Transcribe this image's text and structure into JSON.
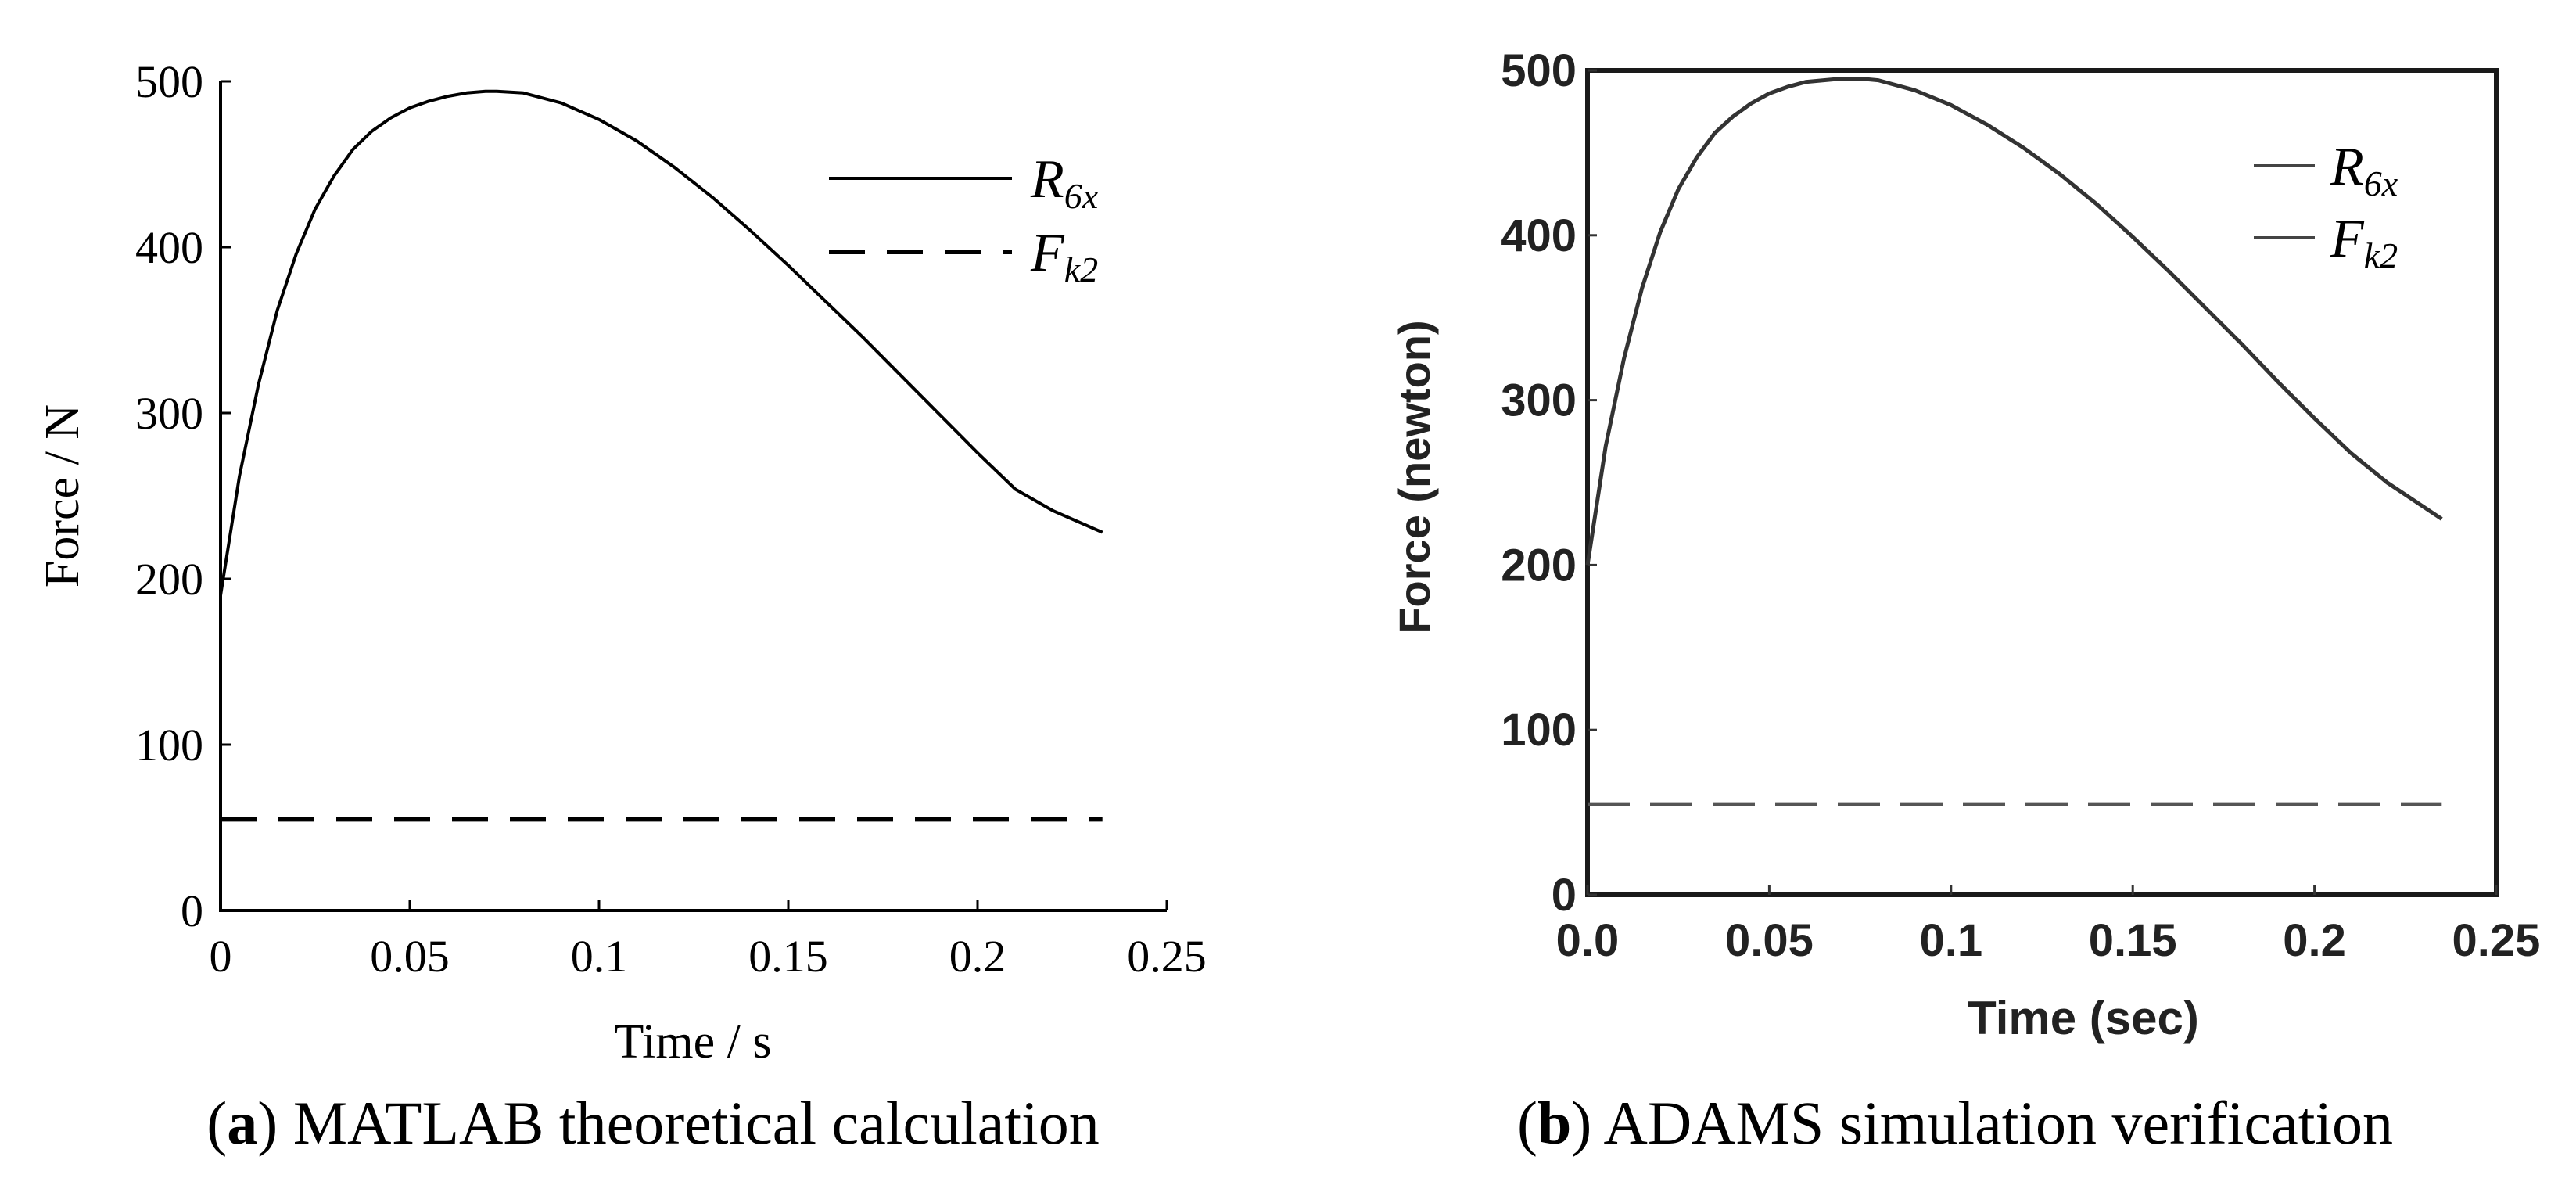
{
  "figure": {
    "caption_a": {
      "label": "a",
      "text": ") MATLAB theoretical calculation"
    },
    "caption_b": {
      "label": "b",
      "text": ") ADAMS simulation verification"
    },
    "paren_open": "("
  },
  "chart_data": [
    {
      "id": "a",
      "type": "line",
      "title": "",
      "xlabel": "Time / s",
      "ylabel": "Force / N",
      "xlim": [
        0,
        0.25
      ],
      "ylim": [
        0,
        500
      ],
      "xticks": [
        "0",
        "0.05",
        "0.1",
        "0.15",
        "0.2",
        "0.25"
      ],
      "yticks": [
        "0",
        "100",
        "200",
        "300",
        "400",
        "500"
      ],
      "grid": false,
      "legend": "top-right",
      "series": [
        {
          "name": "R6x",
          "label_main": "R",
          "label_sub": "6x",
          "style": "solid",
          "x": [
            0,
            0.005,
            0.01,
            0.015,
            0.02,
            0.025,
            0.03,
            0.035,
            0.04,
            0.045,
            0.05,
            0.055,
            0.06,
            0.065,
            0.07,
            0.073,
            0.08,
            0.09,
            0.1,
            0.11,
            0.12,
            0.13,
            0.14,
            0.15,
            0.16,
            0.17,
            0.18,
            0.19,
            0.2,
            0.21,
            0.22,
            0.233
          ],
          "y": [
            190,
            262,
            317,
            362,
            396,
            423,
            443,
            459,
            470,
            478,
            484,
            488,
            491,
            493,
            494,
            494,
            493,
            487,
            477,
            464,
            448,
            430,
            410,
            389,
            367,
            345,
            322,
            299,
            276,
            254,
            241,
            228
          ]
        },
        {
          "name": "Fk2",
          "label_main": "F",
          "label_sub": "k2",
          "style": "dashed",
          "x": [
            0,
            0.233
          ],
          "y": [
            55,
            55
          ]
        }
      ]
    },
    {
      "id": "b",
      "type": "line",
      "title": "",
      "xlabel": "Time (sec)",
      "ylabel": "Force (newton)",
      "xlim": [
        0,
        0.25
      ],
      "ylim": [
        0,
        500
      ],
      "xticks": [
        "0.0",
        "0.05",
        "0.1",
        "0.15",
        "0.2",
        "0.25"
      ],
      "yticks": [
        "0",
        "100",
        "200",
        "300",
        "400",
        "500"
      ],
      "grid": false,
      "legend": "top-right",
      "series": [
        {
          "name": "R6x",
          "label_main": "R",
          "label_sub": "6x",
          "style": "solid",
          "x": [
            0,
            0.005,
            0.01,
            0.015,
            0.02,
            0.025,
            0.03,
            0.035,
            0.04,
            0.045,
            0.05,
            0.055,
            0.06,
            0.065,
            0.07,
            0.075,
            0.08,
            0.09,
            0.1,
            0.11,
            0.12,
            0.13,
            0.14,
            0.15,
            0.16,
            0.17,
            0.18,
            0.19,
            0.2,
            0.21,
            0.22,
            0.235
          ],
          "y": [
            200,
            272,
            325,
            368,
            402,
            428,
            447,
            462,
            472,
            480,
            486,
            490,
            493,
            494,
            495,
            495,
            494,
            488,
            479,
            467,
            453,
            437,
            419,
            399,
            378,
            356,
            334,
            311,
            289,
            268,
            250,
            228
          ]
        },
        {
          "name": "Fk2",
          "label_main": "F",
          "label_sub": "k2",
          "style": "dashed",
          "x": [
            0,
            0.235
          ],
          "y": [
            55,
            55
          ]
        }
      ]
    }
  ]
}
